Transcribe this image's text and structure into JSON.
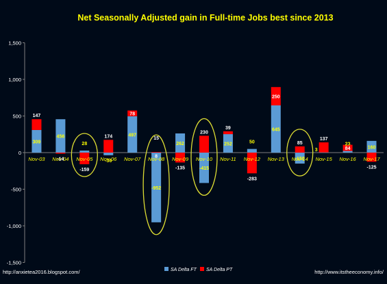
{
  "chart_data": {
    "type": "bar",
    "stacked": true,
    "title": "Net Seasonally Adjusted gain in Full-time Jobs best since 2013",
    "categories": [
      "Nov-03",
      "Nov-04",
      "Nov-05",
      "Nov-06",
      "Nov-07",
      "Nov-08",
      "Nov-09",
      "Nov-10",
      "Nov-11",
      "Nov-12",
      "Nov-13",
      "Nov-14",
      "Nov-15",
      "Nov-16",
      "Nov-17"
    ],
    "series": [
      {
        "name": "SA Delta FT",
        "color": "#5b9bd5",
        "values": [
          309,
          456,
          28,
          -36,
          497,
          -952,
          262,
          -415,
          252,
          50,
          645,
          -150,
          3,
          23,
          160
        ],
        "labels": [
          "309",
          "456",
          "28",
          "-36",
          "497",
          "-952",
          "262",
          "-415",
          "252",
          "50",
          "645",
          "-150",
          "3",
          "23",
          "160"
        ]
      },
      {
        "name": "SA Delta PT",
        "color": "#ff0000",
        "values": [
          147,
          -14,
          -159,
          174,
          78,
          8,
          -135,
          230,
          39,
          -283,
          250,
          85,
          137,
          84,
          -125
        ],
        "labels": [
          "147",
          "-14",
          "-159",
          "174",
          "78",
          "8",
          "-135",
          "230",
          "39",
          "-283",
          "250",
          "85",
          "137",
          "84",
          "-125"
        ]
      }
    ],
    "extra_labels": [
      {
        "category": "Nov-08",
        "text": "15"
      }
    ],
    "yticks": [
      "1,500",
      "1,000",
      "500",
      "0",
      "-500",
      "-1,000",
      "-1,500"
    ],
    "ylim": [
      -1500,
      1500
    ],
    "grid": false,
    "legend": "bottom-center",
    "highlighted_categories": [
      "Nov-05",
      "Nov-08",
      "Nov-10",
      "Nov-14"
    ],
    "colors": {
      "background": "#000a18",
      "title": "#ffff00",
      "axis_text": "#ffffff",
      "category_label": "#ffff00",
      "highlight_ellipse": "#dddd33",
      "ft_label": "#ffff00",
      "pt_label": "#ffffff"
    }
  },
  "footer": {
    "left": "http://anxietea2016.blogspot.com/",
    "right": "http://www.itstheeconomy.info/"
  }
}
